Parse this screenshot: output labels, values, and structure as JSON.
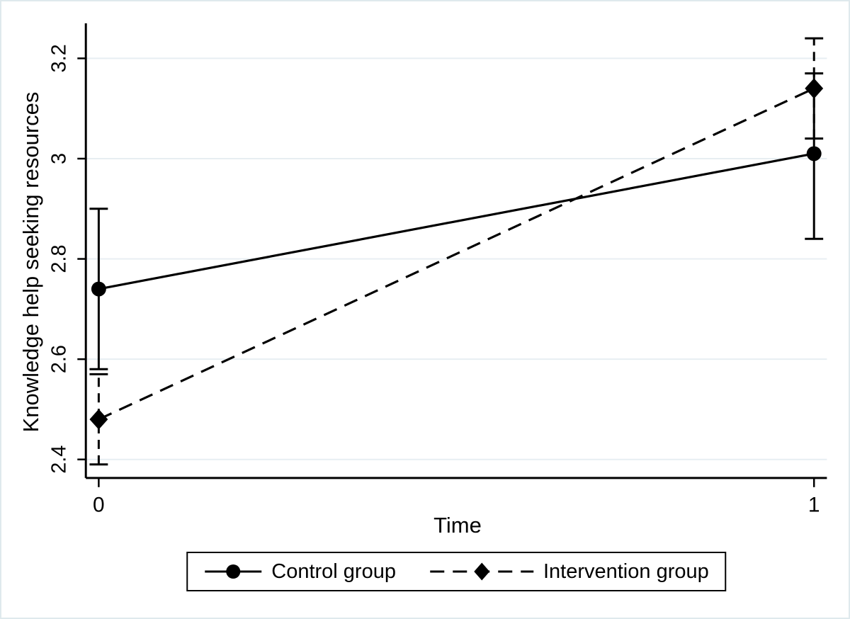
{
  "figure": {
    "background": "#ffffff",
    "border_color": "#dfe9ed"
  },
  "chart_data": {
    "type": "line",
    "title": "",
    "xlabel": "Time",
    "ylabel": "Knowledge help seeking resources",
    "x": [
      0,
      1
    ],
    "x_tick_labels": [
      "0",
      "1"
    ],
    "xlim": [
      -0.018,
      1.018
    ],
    "y_ticks": [
      2.4,
      2.6,
      2.8,
      3,
      3.2
    ],
    "y_tick_labels": [
      "2.4",
      "2.6",
      "2.8",
      "3",
      "3.2"
    ],
    "ylim": [
      2.363,
      3.27
    ],
    "grid": true,
    "gridline_color": "#e7eef2",
    "axis_color": "#000000",
    "legend_position": "bottom",
    "series": [
      {
        "name": "Control group",
        "marker": "circle",
        "line_style": "solid",
        "color": "#000000",
        "values": [
          2.74,
          3.01
        ],
        "ci_low": [
          2.58,
          2.84
        ],
        "ci_high": [
          2.9,
          3.17
        ]
      },
      {
        "name": "Intervention group",
        "marker": "diamond",
        "line_style": "dashed",
        "color": "#000000",
        "values": [
          2.48,
          3.14
        ],
        "ci_low": [
          2.39,
          3.04
        ],
        "ci_high": [
          2.57,
          3.24
        ]
      }
    ]
  }
}
